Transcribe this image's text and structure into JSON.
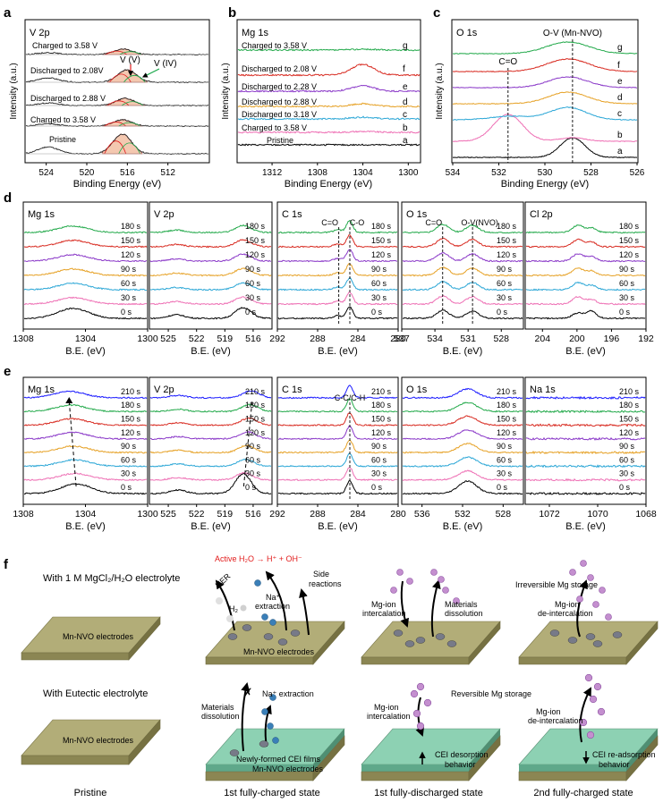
{
  "panel_letters": {
    "a": "a",
    "b": "b",
    "c": "c",
    "d": "d",
    "e": "e",
    "f": "f"
  },
  "colors": {
    "series": [
      "#000000",
      "#ee6fb4",
      "#2aa6d6",
      "#e6a125",
      "#8a38c8",
      "#d82a20",
      "#22a94a"
    ],
    "red": "#e21b1b",
    "green": "#1aa84a",
    "fill": "#f4c8b0",
    "fill_edge": "#d9645a",
    "board_top": "#b2ad78",
    "board_side": "#8b8653",
    "cei": "#8dd1b3",
    "cei_side": "#5fa88a",
    "ion": "#c48fcf",
    "ion_dark": "#8a4fa0"
  },
  "chart_data": [
    {
      "id": "a",
      "type": "line",
      "title": "V 2p",
      "xlabel": "Binding Energy (eV)",
      "ylabel": "Intensity (a.u.)",
      "xlim": [
        526,
        508
      ],
      "xticks": [
        "524",
        "520",
        "516",
        "512"
      ],
      "xtick_values": [
        524,
        520,
        516,
        512
      ],
      "series": [
        {
          "name": "Pristine",
          "peak": 516.5
        },
        {
          "name": "Charged to 3.58 V",
          "peak": 516.5
        },
        {
          "name": "Discharged to 2.88 V",
          "peak": 516.2
        },
        {
          "name": "Discharged to 2.08V",
          "peak": 516.0
        },
        {
          "name": "Charged to 3.58 V",
          "peak": 516.4
        }
      ],
      "annotations": [
        "V (V)",
        "V (IV)"
      ]
    },
    {
      "id": "b",
      "type": "line",
      "title": "Mg 1s",
      "xlabel": "Binding Energy (eV)",
      "ylabel": "Intensity (a.u.)",
      "xlim": [
        1315,
        1299
      ],
      "xticks": [
        "1312",
        "1308",
        "1304",
        "1300"
      ],
      "xtick_values": [
        1312,
        1308,
        1304,
        1300
      ],
      "series": [
        {
          "letter": "a",
          "name": "Pristine"
        },
        {
          "letter": "b",
          "name": "Charged to 3.58 V"
        },
        {
          "letter": "c",
          "name": "Discharged to 3.18 V"
        },
        {
          "letter": "d",
          "name": "Discharged to 2.88 V"
        },
        {
          "letter": "e",
          "name": "Discharged to 2.28 V"
        },
        {
          "letter": "f",
          "name": "Discharged to 2.08 V"
        },
        {
          "letter": "g",
          "name": "Charged to 3.58 V"
        }
      ]
    },
    {
      "id": "c",
      "type": "line",
      "title": "O 1s",
      "xlabel": "Binding Energy (eV)",
      "ylabel": "Intensity (a.u.)",
      "xlim": [
        534,
        526
      ],
      "xticks": [
        "534",
        "532",
        "530",
        "528",
        "526"
      ],
      "xtick_values": [
        534,
        532,
        530,
        528,
        526
      ],
      "series_letters": [
        "a",
        "b",
        "c",
        "d",
        "e",
        "f",
        "g"
      ],
      "annotations": [
        {
          "text": "C=O",
          "x": 531.6
        },
        {
          "text": "O-V (Mn-NVO)",
          "x": 528.8
        }
      ]
    }
  ],
  "row_d": {
    "xlabel": "B.E. (eV)",
    "time_labels": [
      "0 s",
      "30 s",
      "60 s",
      "90 s",
      "120 s",
      "150 s",
      "180 s"
    ],
    "panels": [
      {
        "title": "Mg 1s",
        "xlim": [
          1308,
          1300
        ],
        "xticks": [
          "1308",
          "1304",
          "1300"
        ],
        "xtick_values": [
          1308,
          1304,
          1300
        ],
        "peaks": [
          1304.8
        ]
      },
      {
        "title": "V 2p",
        "xlim": [
          527,
          514
        ],
        "xticks": [
          "525",
          "522",
          "519",
          "516"
        ],
        "xtick_values": [
          525,
          522,
          519,
          516
        ],
        "peaks": [
          524.2,
          517.0
        ]
      },
      {
        "title": "C 1s",
        "xlim": [
          292,
          280
        ],
        "xticks": [
          "292",
          "288",
          "284",
          "280"
        ],
        "xtick_values": [
          292,
          288,
          284,
          280
        ],
        "peaks": [
          284.8
        ],
        "lines": [
          {
            "x": 285.9,
            "label": "C=O"
          },
          {
            "x": 284.8,
            "label": "C-O"
          }
        ]
      },
      {
        "title": "O 1s",
        "xlim": [
          537,
          526
        ],
        "xticks": [
          "537",
          "534",
          "531",
          "528"
        ],
        "xtick_values": [
          537,
          534,
          531,
          528
        ],
        "peaks": [
          533.3,
          530.6
        ],
        "lines": [
          {
            "x": 533.3,
            "label": "C=O"
          },
          {
            "x": 530.6,
            "label": "O-V(NVO)"
          }
        ]
      },
      {
        "title": "Cl 2p",
        "xlim": [
          206,
          192
        ],
        "xticks": [
          "204",
          "200",
          "196",
          "192"
        ],
        "xtick_values": [
          204,
          200,
          196,
          192
        ],
        "peaks": [
          199.9,
          198.3
        ]
      }
    ]
  },
  "row_e": {
    "xlabel": "B.E. (eV)",
    "time_labels": [
      "0 s",
      "30 s",
      "60 s",
      "90 s",
      "120 s",
      "150 s",
      "180 s",
      "210 s"
    ],
    "panels": [
      {
        "title": "Mg 1s",
        "xlim": [
          1308,
          1300
        ],
        "xticks": [
          "1308",
          "1304",
          "1300"
        ],
        "xtick_values": [
          1308,
          1304,
          1300
        ],
        "peaks": [
          1304.6
        ]
      },
      {
        "title": "V 2p",
        "xlim": [
          527,
          514
        ],
        "xticks": [
          "525",
          "522",
          "519",
          "516"
        ],
        "xtick_values": [
          525,
          522,
          519,
          516
        ],
        "peaks": [
          524.0,
          517.0
        ]
      },
      {
        "title": "C 1s",
        "xlim": [
          292,
          280
        ],
        "xticks": [
          "292",
          "288",
          "284",
          "280"
        ],
        "xtick_values": [
          292,
          288,
          284,
          280
        ],
        "peaks": [
          284.8
        ],
        "lines": [
          {
            "x": 284.8,
            "label": "C-C/C-H"
          }
        ]
      },
      {
        "title": "O 1s",
        "xlim": [
          538,
          526
        ],
        "xticks": [
          "536",
          "532",
          "528"
        ],
        "xtick_values": [
          536,
          532,
          528
        ],
        "peaks": [
          531.5
        ]
      },
      {
        "title": "Na 1s",
        "xlim": [
          1073,
          1068
        ],
        "xticks": [
          "1072",
          "1070",
          "1068"
        ],
        "xtick_values": [
          1072,
          1070,
          1068
        ],
        "peaks": []
      }
    ]
  },
  "schematic": {
    "row1_title": "With 1 M MgCl₂/H₂O electrolyte",
    "row2_title": "With Eutectic electrolyte",
    "electrode": "Mn-NVO electrodes",
    "cei_films": "Newly-formed CEI films",
    "active_h2o": "Active H₂O → H⁺ + OH⁻",
    "her": "HER",
    "h2": "H₂",
    "side1": "Side",
    "side2": "reactions",
    "na1": "Na⁺",
    "na2": "extraction",
    "na_extraction": "Na⁺ extraction",
    "mg_int1": "Mg-ion",
    "mg_int2": "intercalation",
    "mg_deint2": "de-intercalation",
    "mat1": "Materials",
    "mat2": "dissolution",
    "irreversible": "Irreversible Mg storage",
    "reversible": "Reversible Mg storage",
    "cei_desorp1": "CEI desorption",
    "cei_readsorp1": "CEI re-adsorption",
    "behavior": "behavior",
    "cross": "✗",
    "states": [
      "Pristine",
      "1st fully-charged state",
      "1st fully-discharged state",
      "2nd fully-charged state"
    ]
  }
}
